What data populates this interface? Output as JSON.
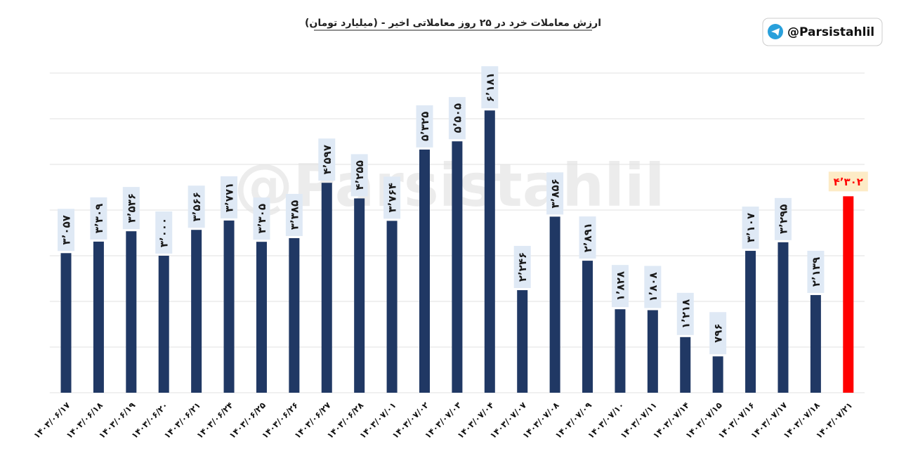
{
  "chart_data": {
    "type": "bar",
    "title": "ارزش معاملات خرد در ۲۵ روز معاملاتی اخیر - (میلیارد تومان)",
    "handle": "@Parsistahlil",
    "watermark": "@Parsistahlil",
    "categories": [
      "۱۴۰۳/۰۶/۱۷",
      "۱۴۰۳/۰۶/۱۸",
      "۱۴۰۳/۰۶/۱۹",
      "۱۴۰۳/۰۶/۲۰",
      "۱۴۰۳/۰۶/۲۱",
      "۱۴۰۳/۰۶/۲۴",
      "۱۴۰۳/۰۶/۲۵",
      "۱۴۰۳/۰۶/۲۶",
      "۱۴۰۳/۰۶/۲۷",
      "۱۴۰۳/۰۶/۲۸",
      "۱۴۰۳/۰۷/۰۱",
      "۱۴۰۳/۰۷/۰۲",
      "۱۴۰۳/۰۷/۰۳",
      "۱۴۰۳/۰۷/۰۴",
      "۱۴۰۳/۰۷/۰۷",
      "۱۴۰۳/۰۷/۰۸",
      "۱۴۰۳/۰۷/۰۹",
      "۱۴۰۳/۰۷/۱۰",
      "۱۴۰۳/۰۷/۱۱",
      "۱۴۰۳/۰۷/۱۴",
      "۱۴۰۳/۰۷/۱۵",
      "۱۴۰۳/۰۷/۱۶",
      "۱۴۰۳/۰۷/۱۷",
      "۱۴۰۳/۰۷/۱۸",
      "۱۴۰۳/۰۷/۲۱"
    ],
    "values": [
      3057,
      3309,
      3536,
      3000,
      3566,
      3771,
      3305,
      3385,
      4597,
      4255,
      3764,
      5325,
      5505,
      6181,
      2246,
      3856,
      2891,
      1828,
      1808,
      1218,
      796,
      3107,
      3295,
      2139,
      4302
    ],
    "value_labels": [
      "۳٬۰۵۷",
      "۳٬۳۰۹",
      "۳٬۵۳۶",
      "۳٬۰۰۰",
      "۳٬۵۶۶",
      "۳٬۷۷۱",
      "۳٬۳۰۵",
      "۳٬۳۸۵",
      "۴٬۵۹۷",
      "۴٬۲۵۵",
      "۳٬۷۶۴",
      "۵٬۳۲۵",
      "۵٬۵۰۵",
      "۶٬۱۸۱",
      "۲٬۲۴۶",
      "۳٬۸۵۶",
      "۲٬۸۹۱",
      "۱٬۸۲۸",
      "۱٬۸۰۸",
      "۱٬۲۱۸",
      "۷۹۶",
      "۳٬۱۰۷",
      "۳٬۲۹۵",
      "۲٬۱۳۹",
      "۴٬۳۰۲"
    ],
    "colors": [
      "#203864",
      "#203864",
      "#203864",
      "#203864",
      "#203864",
      "#203864",
      "#203864",
      "#203864",
      "#203864",
      "#203864",
      "#203864",
      "#203864",
      "#203864",
      "#203864",
      "#203864",
      "#203864",
      "#203864",
      "#203864",
      "#203864",
      "#203864",
      "#203864",
      "#203864",
      "#203864",
      "#203864",
      "#ff0000"
    ],
    "ylim": [
      0,
      7000
    ],
    "yticks": [
      0,
      1000,
      2000,
      3000,
      4000,
      5000,
      6000,
      7000
    ],
    "grid": true
  }
}
